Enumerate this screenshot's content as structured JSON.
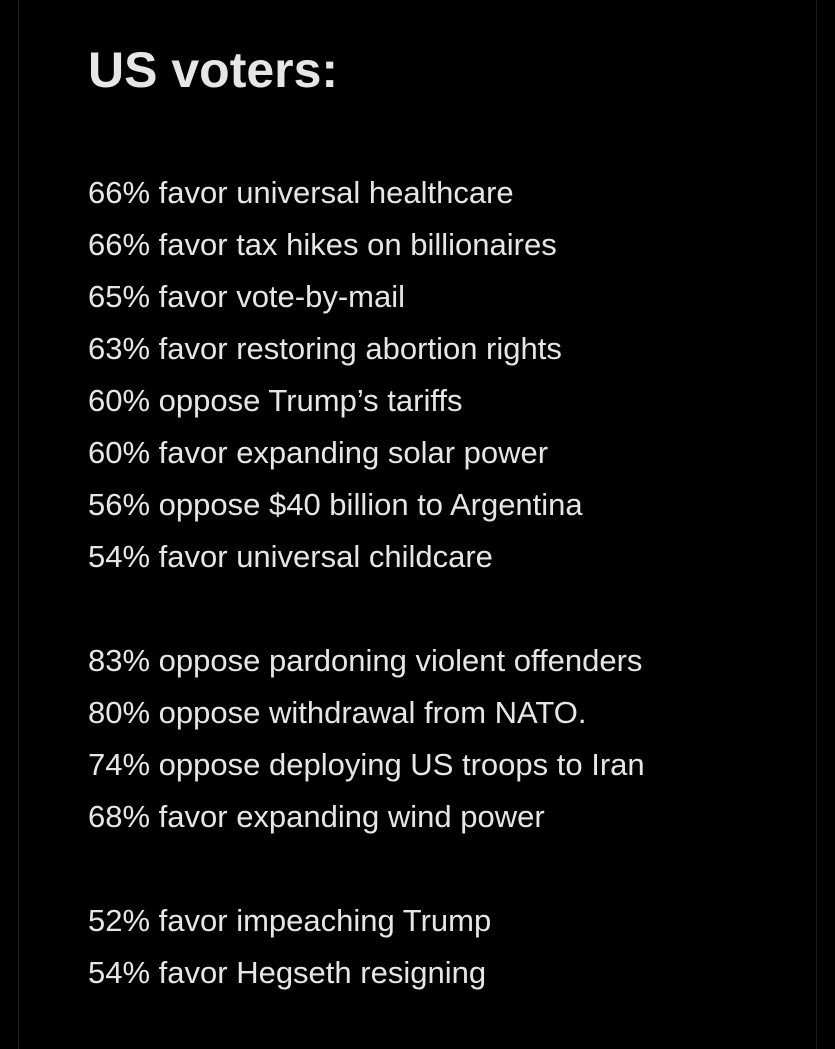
{
  "post": {
    "title": "US voters:",
    "groups": [
      {
        "items": [
          "66% favor universal healthcare",
          "66% favor tax hikes on billionaires",
          "65% favor vote-by-mail",
          "63% favor restoring abortion rights",
          "60% oppose Trump’s tariffs",
          "60% favor expanding solar power",
          "56% oppose $40 billion to Argentina",
          "54% favor universal childcare"
        ]
      },
      {
        "items": [
          "83% oppose pardoning violent offenders",
          "80% oppose withdrawal from NATO.",
          "74% oppose deploying US troops to Iran",
          "68% favor expanding wind power"
        ]
      },
      {
        "items": [
          "52% favor impeaching Trump",
          "54% favor Hegseth resigning"
        ]
      }
    ]
  },
  "colors": {
    "background": "#000000",
    "text": "#e6e6e6"
  }
}
